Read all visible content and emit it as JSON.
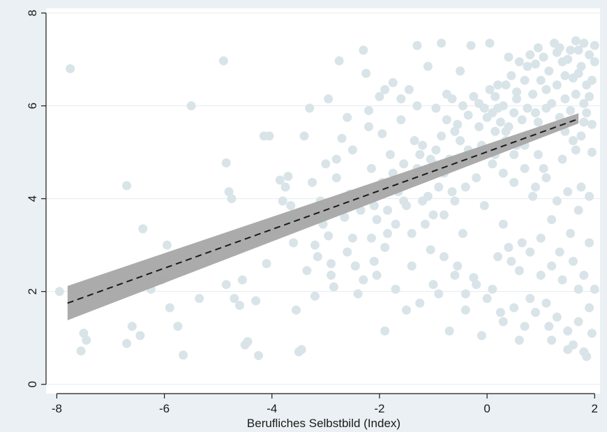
{
  "chart_data": {
    "type": "scatter",
    "title": "",
    "xlabel": "Berufliches Selbstbild (Index)",
    "ylabel": "",
    "xlim": [
      -8.2,
      2.1
    ],
    "ylim": [
      -0.2,
      8.1
    ],
    "x_ticks": [
      -8,
      -6,
      -4,
      -2,
      0,
      2
    ],
    "y_ticks": [
      0,
      2,
      4,
      6,
      8
    ],
    "grid": "horizontal",
    "legend": "none",
    "colors": {
      "background": "#eaf0f3",
      "plot_background": "#ffffff",
      "points": "#d9e4e9",
      "fit_line": "#1a1a1a",
      "confidence_band": "#a6a6a6",
      "grid": "#e6ecef"
    },
    "fit_line": {
      "style": "dashed",
      "x": [
        -7.8,
        1.7
      ],
      "y": [
        1.75,
        5.72
      ],
      "ci_lower": [
        1.38,
        5.62
      ],
      "ci_upper": [
        2.12,
        5.84
      ]
    },
    "points": [
      {
        "x": -7.75,
        "y": 6.8
      },
      {
        "x": -7.95,
        "y": 2.0
      },
      {
        "x": -7.5,
        "y": 1.1
      },
      {
        "x": -7.55,
        "y": 0.72
      },
      {
        "x": -7.45,
        "y": 0.95
      },
      {
        "x": -6.7,
        "y": 4.28
      },
      {
        "x": -6.6,
        "y": 1.25
      },
      {
        "x": -6.7,
        "y": 0.88
      },
      {
        "x": -6.45,
        "y": 1.05
      },
      {
        "x": -6.4,
        "y": 3.35
      },
      {
        "x": -6.25,
        "y": 2.05
      },
      {
        "x": -6.05,
        "y": 2.25
      },
      {
        "x": -5.95,
        "y": 3.0
      },
      {
        "x": -5.9,
        "y": 1.65
      },
      {
        "x": -5.75,
        "y": 1.25
      },
      {
        "x": -5.65,
        "y": 0.63
      },
      {
        "x": -5.5,
        "y": 6.0
      },
      {
        "x": -5.35,
        "y": 1.85
      },
      {
        "x": -4.9,
        "y": 6.97
      },
      {
        "x": -4.85,
        "y": 4.77
      },
      {
        "x": -4.8,
        "y": 4.15
      },
      {
        "x": -4.75,
        "y": 4.0
      },
      {
        "x": -4.85,
        "y": 2.15
      },
      {
        "x": -4.7,
        "y": 1.85
      },
      {
        "x": -4.6,
        "y": 1.7
      },
      {
        "x": -4.55,
        "y": 2.25
      },
      {
        "x": -4.5,
        "y": 0.85
      },
      {
        "x": -4.45,
        "y": 0.92
      },
      {
        "x": -4.3,
        "y": 1.8
      },
      {
        "x": -4.25,
        "y": 0.62
      },
      {
        "x": -4.15,
        "y": 5.35
      },
      {
        "x": -4.05,
        "y": 5.35
      },
      {
        "x": -4.1,
        "y": 2.6
      },
      {
        "x": -3.95,
        "y": 3.3
      },
      {
        "x": -3.85,
        "y": 4.4
      },
      {
        "x": -3.8,
        "y": 3.95
      },
      {
        "x": -3.75,
        "y": 4.25
      },
      {
        "x": -3.7,
        "y": 4.48
      },
      {
        "x": -3.65,
        "y": 3.85
      },
      {
        "x": -3.6,
        "y": 3.05
      },
      {
        "x": -3.55,
        "y": 1.6
      },
      {
        "x": -3.5,
        "y": 0.7
      },
      {
        "x": -3.45,
        "y": 0.75
      },
      {
        "x": -3.4,
        "y": 5.35
      },
      {
        "x": -3.3,
        "y": 5.95
      },
      {
        "x": -3.25,
        "y": 4.35
      },
      {
        "x": -3.2,
        "y": 3.0
      },
      {
        "x": -3.15,
        "y": 2.75
      },
      {
        "x": -3.05,
        "y": 3.45
      },
      {
        "x": -2.95,
        "y": 6.15
      },
      {
        "x": -2.9,
        "y": 2.35
      },
      {
        "x": -2.85,
        "y": 2.1
      },
      {
        "x": -2.8,
        "y": 4.85
      },
      {
        "x": -2.75,
        "y": 6.97
      },
      {
        "x": -2.7,
        "y": 5.3
      },
      {
        "x": -2.6,
        "y": 5.75
      },
      {
        "x": -2.55,
        "y": 4.1
      },
      {
        "x": -2.5,
        "y": 3.15
      },
      {
        "x": -2.45,
        "y": 2.55
      },
      {
        "x": -2.4,
        "y": 1.95
      },
      {
        "x": -2.3,
        "y": 7.2
      },
      {
        "x": -2.25,
        "y": 6.7
      },
      {
        "x": -2.2,
        "y": 5.55
      },
      {
        "x": -2.15,
        "y": 4.65
      },
      {
        "x": -2.1,
        "y": 3.85
      },
      {
        "x": -2.05,
        "y": 2.35
      },
      {
        "x": -2.0,
        "y": 6.2
      },
      {
        "x": -1.95,
        "y": 5.4
      },
      {
        "x": -1.9,
        "y": 1.15
      },
      {
        "x": -1.85,
        "y": 3.25
      },
      {
        "x": -1.8,
        "y": 4.95
      },
      {
        "x": -1.75,
        "y": 6.5
      },
      {
        "x": -1.7,
        "y": 2.05
      },
      {
        "x": -1.6,
        "y": 5.7
      },
      {
        "x": -1.55,
        "y": 3.95
      },
      {
        "x": -1.5,
        "y": 1.6
      },
      {
        "x": -1.45,
        "y": 6.35
      },
      {
        "x": -1.4,
        "y": 2.55
      },
      {
        "x": -1.35,
        "y": 4.45
      },
      {
        "x": -1.3,
        "y": 7.3
      },
      {
        "x": -1.25,
        "y": 1.75
      },
      {
        "x": -1.2,
        "y": 5.15
      },
      {
        "x": -1.15,
        "y": 3.45
      },
      {
        "x": -1.1,
        "y": 6.85
      },
      {
        "x": -1.05,
        "y": 2.9
      },
      {
        "x": -1.0,
        "y": 4.75
      },
      {
        "x": -0.95,
        "y": 5.95
      },
      {
        "x": -0.9,
        "y": 1.95
      },
      {
        "x": -0.85,
        "y": 7.35
      },
      {
        "x": -0.8,
        "y": 3.65
      },
      {
        "x": -0.75,
        "y": 6.25
      },
      {
        "x": -0.7,
        "y": 1.15
      },
      {
        "x": -0.65,
        "y": 4.15
      },
      {
        "x": -0.6,
        "y": 5.45
      },
      {
        "x": -0.55,
        "y": 2.55
      },
      {
        "x": -0.5,
        "y": 6.75
      },
      {
        "x": -0.45,
        "y": 3.25
      },
      {
        "x": -0.4,
        "y": 1.6
      },
      {
        "x": -0.35,
        "y": 5.05
      },
      {
        "x": -0.3,
        "y": 7.3
      },
      {
        "x": -0.25,
        "y": 2.3
      },
      {
        "x": -0.2,
        "y": 4.45
      },
      {
        "x": -0.15,
        "y": 6.05
      },
      {
        "x": -0.1,
        "y": 1.05
      },
      {
        "x": -0.05,
        "y": 3.85
      },
      {
        "x": 0.0,
        "y": 5.75
      },
      {
        "x": 0.05,
        "y": 7.35
      },
      {
        "x": 0.1,
        "y": 2.05
      },
      {
        "x": 0.15,
        "y": 4.95
      },
      {
        "x": 0.2,
        "y": 6.45
      },
      {
        "x": 0.25,
        "y": 1.55
      },
      {
        "x": 0.3,
        "y": 3.45
      },
      {
        "x": 0.35,
        "y": 5.45
      },
      {
        "x": 0.4,
        "y": 7.05
      },
      {
        "x": 0.45,
        "y": 2.65
      },
      {
        "x": 0.5,
        "y": 4.35
      },
      {
        "x": 0.55,
        "y": 6.15
      },
      {
        "x": 0.6,
        "y": 0.95
      },
      {
        "x": 0.65,
        "y": 3.05
      },
      {
        "x": 0.7,
        "y": 5.15
      },
      {
        "x": 0.75,
        "y": 6.85
      },
      {
        "x": 0.8,
        "y": 1.85
      },
      {
        "x": 0.85,
        "y": 4.05
      },
      {
        "x": 0.9,
        "y": 5.85
      },
      {
        "x": 0.95,
        "y": 7.25
      },
      {
        "x": 1.0,
        "y": 2.35
      },
      {
        "x": 1.05,
        "y": 4.65
      },
      {
        "x": 1.1,
        "y": 6.35
      },
      {
        "x": 1.15,
        "y": 1.25
      },
      {
        "x": 1.2,
        "y": 3.55
      },
      {
        "x": 1.25,
        "y": 5.55
      },
      {
        "x": 1.3,
        "y": 7.15
      },
      {
        "x": 1.35,
        "y": 2.85
      },
      {
        "x": 1.4,
        "y": 4.85
      },
      {
        "x": 1.45,
        "y": 6.65
      },
      {
        "x": 1.5,
        "y": 0.75
      },
      {
        "x": 1.55,
        "y": 3.25
      },
      {
        "x": 1.6,
        "y": 5.25
      },
      {
        "x": 1.65,
        "y": 7.4
      },
      {
        "x": 1.7,
        "y": 2.05
      },
      {
        "x": 1.75,
        "y": 4.25
      },
      {
        "x": 1.8,
        "y": 6.05
      },
      {
        "x": 1.85,
        "y": 0.6
      },
      {
        "x": 1.9,
        "y": 3.05
      },
      {
        "x": 1.95,
        "y": 5.0
      },
      {
        "x": 2.0,
        "y": 6.95
      },
      {
        "x": 1.95,
        "y": 1.1
      },
      {
        "x": 1.9,
        "y": 7.1
      },
      {
        "x": 1.85,
        "y": 6.45
      },
      {
        "x": 1.8,
        "y": 5.65
      },
      {
        "x": 1.75,
        "y": 6.85
      },
      {
        "x": 1.7,
        "y": 7.2
      },
      {
        "x": 1.65,
        "y": 6.25
      },
      {
        "x": 1.6,
        "y": 6.6
      },
      {
        "x": 1.55,
        "y": 5.9
      },
      {
        "x": 1.5,
        "y": 7.0
      },
      {
        "x": 1.45,
        "y": 6.15
      },
      {
        "x": 1.4,
        "y": 6.95
      },
      {
        "x": 1.35,
        "y": 5.75
      },
      {
        "x": 1.3,
        "y": 6.45
      },
      {
        "x": 1.25,
        "y": 7.35
      },
      {
        "x": 1.2,
        "y": 6.05
      },
      {
        "x": 1.15,
        "y": 6.75
      },
      {
        "x": 1.1,
        "y": 5.95
      },
      {
        "x": 1.05,
        "y": 7.05
      },
      {
        "x": 1.0,
        "y": 6.55
      },
      {
        "x": 0.95,
        "y": 5.65
      },
      {
        "x": 0.9,
        "y": 6.9
      },
      {
        "x": 0.85,
        "y": 6.25
      },
      {
        "x": 0.8,
        "y": 7.1
      },
      {
        "x": 0.75,
        "y": 5.95
      },
      {
        "x": 0.7,
        "y": 6.55
      },
      {
        "x": 0.65,
        "y": 5.7
      },
      {
        "x": 0.6,
        "y": 6.95
      },
      {
        "x": 0.55,
        "y": 6.3
      },
      {
        "x": 0.5,
        "y": 5.85
      },
      {
        "x": 0.45,
        "y": 6.65
      },
      {
        "x": 0.4,
        "y": 5.55
      },
      {
        "x": 0.35,
        "y": 6.45
      },
      {
        "x": 0.3,
        "y": 6.0
      },
      {
        "x": 0.25,
        "y": 5.65
      },
      {
        "x": 0.2,
        "y": 5.95
      },
      {
        "x": 0.15,
        "y": 6.2
      },
      {
        "x": 0.1,
        "y": 5.85
      },
      {
        "x": 0.05,
        "y": 6.35
      },
      {
        "x": -0.05,
        "y": 5.95
      },
      {
        "x": -0.15,
        "y": 5.55
      },
      {
        "x": -0.25,
        "y": 6.2
      },
      {
        "x": -0.35,
        "y": 5.8
      },
      {
        "x": -0.45,
        "y": 6.0
      },
      {
        "x": -0.55,
        "y": 5.6
      },
      {
        "x": -0.65,
        "y": 6.15
      },
      {
        "x": -0.75,
        "y": 5.7
      },
      {
        "x": -0.85,
        "y": 5.35
      },
      {
        "x": -0.95,
        "y": 5.05
      },
      {
        "x": -1.05,
        "y": 4.85
      },
      {
        "x": -1.15,
        "y": 4.55
      },
      {
        "x": -1.25,
        "y": 4.95
      },
      {
        "x": -1.35,
        "y": 5.25
      },
      {
        "x": -1.45,
        "y": 4.35
      },
      {
        "x": -1.55,
        "y": 4.75
      },
      {
        "x": -1.65,
        "y": 4.15
      },
      {
        "x": -1.75,
        "y": 4.55
      },
      {
        "x": -1.85,
        "y": 3.75
      },
      {
        "x": -1.95,
        "y": 4.35
      },
      {
        "x": -2.05,
        "y": 3.55
      },
      {
        "x": -2.15,
        "y": 3.15
      },
      {
        "x": -2.35,
        "y": 3.75
      },
      {
        "x": -2.65,
        "y": 3.6
      },
      {
        "x": -2.95,
        "y": 3.2
      },
      {
        "x": -3.1,
        "y": 3.95
      },
      {
        "x": -3.35,
        "y": 2.45
      },
      {
        "x": 0.1,
        "y": 4.75
      },
      {
        "x": 0.3,
        "y": 4.55
      },
      {
        "x": 0.5,
        "y": 4.95
      },
      {
        "x": 0.7,
        "y": 4.65
      },
      {
        "x": 0.9,
        "y": 4.25
      },
      {
        "x": 1.1,
        "y": 4.45
      },
      {
        "x": 1.3,
        "y": 3.95
      },
      {
        "x": 1.5,
        "y": 4.15
      },
      {
        "x": 1.7,
        "y": 3.75
      },
      {
        "x": 1.9,
        "y": 4.05
      },
      {
        "x": -0.4,
        "y": 4.25
      },
      {
        "x": -0.6,
        "y": 3.95
      },
      {
        "x": -0.8,
        "y": 4.55
      },
      {
        "x": -1.0,
        "y": 3.65
      },
      {
        "x": -1.2,
        "y": 3.95
      },
      {
        "x": -1.4,
        "y": 3.25
      },
      {
        "x": 0.2,
        "y": 2.75
      },
      {
        "x": 0.4,
        "y": 2.95
      },
      {
        "x": 0.6,
        "y": 2.45
      },
      {
        "x": 0.8,
        "y": 2.85
      },
      {
        "x": 1.0,
        "y": 3.15
      },
      {
        "x": 1.2,
        "y": 2.55
      },
      {
        "x": 1.4,
        "y": 2.25
      },
      {
        "x": 1.6,
        "y": 2.65
      },
      {
        "x": 1.8,
        "y": 2.35
      },
      {
        "x": 2.0,
        "y": 2.05
      },
      {
        "x": 0.0,
        "y": 1.85
      },
      {
        "x": -0.2,
        "y": 2.15
      },
      {
        "x": -0.4,
        "y": 1.95
      },
      {
        "x": -0.6,
        "y": 2.35
      },
      {
        "x": -0.8,
        "y": 2.75
      },
      {
        "x": -1.0,
        "y": 2.15
      },
      {
        "x": 0.3,
        "y": 1.35
      },
      {
        "x": 0.5,
        "y": 1.65
      },
      {
        "x": 0.7,
        "y": 1.25
      },
      {
        "x": 0.9,
        "y": 1.55
      },
      {
        "x": 1.1,
        "y": 1.75
      },
      {
        "x": 1.3,
        "y": 1.45
      },
      {
        "x": 1.5,
        "y": 1.15
      },
      {
        "x": 1.7,
        "y": 1.35
      },
      {
        "x": 1.9,
        "y": 1.65
      },
      {
        "x": 1.2,
        "y": 0.95
      },
      {
        "x": 1.6,
        "y": 0.85
      },
      {
        "x": 1.8,
        "y": 0.7
      },
      {
        "x": -1.3,
        "y": 6.0
      },
      {
        "x": -1.6,
        "y": 6.15
      },
      {
        "x": -1.9,
        "y": 6.35
      },
      {
        "x": -2.2,
        "y": 5.9
      },
      {
        "x": -2.5,
        "y": 5.05
      },
      {
        "x": -2.8,
        "y": 4.45
      },
      {
        "x": -3.0,
        "y": 4.75
      },
      {
        "x": -3.6,
        "y": 3.6
      },
      {
        "x": 1.75,
        "y": 5.35
      },
      {
        "x": 1.85,
        "y": 5.85
      },
      {
        "x": 1.95,
        "y": 6.55
      },
      {
        "x": 2.0,
        "y": 7.3
      },
      {
        "x": 1.65,
        "y": 5.05
      },
      {
        "x": 1.55,
        "y": 7.2
      },
      {
        "x": 1.45,
        "y": 5.45
      },
      {
        "x": 1.35,
        "y": 7.25
      },
      {
        "x": 1.95,
        "y": 5.6
      },
      {
        "x": 1.9,
        "y": 6.2
      },
      {
        "x": 1.8,
        "y": 7.35
      },
      {
        "x": 1.7,
        "y": 6.7
      },
      {
        "x": 0.95,
        "y": 4.95
      },
      {
        "x": 0.75,
        "y": 5.35
      },
      {
        "x": 0.55,
        "y": 5.15
      },
      {
        "x": 0.35,
        "y": 5.25
      },
      {
        "x": 0.15,
        "y": 5.45
      },
      {
        "x": -0.1,
        "y": 5.15
      },
      {
        "x": -0.3,
        "y": 4.95
      },
      {
        "x": -0.5,
        "y": 5.25
      },
      {
        "x": -0.7,
        "y": 4.85
      },
      {
        "x": -0.9,
        "y": 4.25
      },
      {
        "x": -1.1,
        "y": 4.05
      },
      {
        "x": -1.3,
        "y": 4.65
      },
      {
        "x": -1.5,
        "y": 3.85
      },
      {
        "x": -1.7,
        "y": 3.45
      },
      {
        "x": -1.9,
        "y": 2.95
      },
      {
        "x": -2.1,
        "y": 2.65
      },
      {
        "x": -2.3,
        "y": 2.25
      },
      {
        "x": -2.6,
        "y": 2.85
      },
      {
        "x": -2.9,
        "y": 2.6
      },
      {
        "x": -3.2,
        "y": 1.9
      }
    ]
  }
}
